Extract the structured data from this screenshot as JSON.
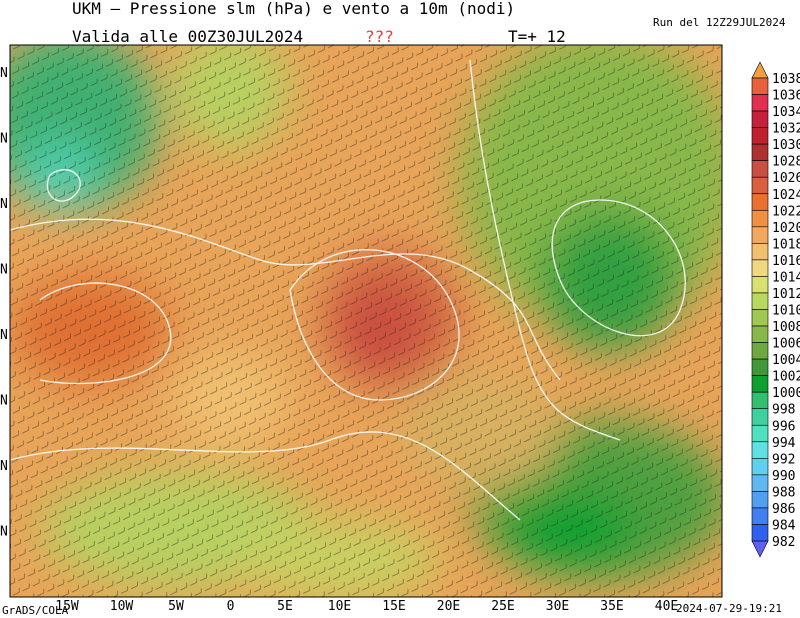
{
  "header": {
    "title": "UKM – Pressione slm (hPa) e vento a 10m (nodi)",
    "valid": "Valida alle 00Z30JUL2024",
    "flag": "???",
    "step": "T=+ 12",
    "run": "Run del 12Z29JUL2024"
  },
  "colorbar": {
    "levels": [
      1038,
      1036,
      1034,
      1032,
      1030,
      1028,
      1026,
      1024,
      1022,
      1020,
      1018,
      1016,
      1014,
      1012,
      1010,
      1008,
      1006,
      1004,
      1002,
      1000,
      998,
      996,
      994,
      992,
      990,
      988,
      986,
      984,
      982
    ],
    "colors": [
      "#e8603c",
      "#e03050",
      "#c8203c",
      "#c02030",
      "#b03030",
      "#c85040",
      "#d86040",
      "#e87030",
      "#f09040",
      "#f0a860",
      "#f0c070",
      "#f0d880",
      "#d8e070",
      "#b8d860",
      "#a0c850",
      "#88b848",
      "#70a840",
      "#409838",
      "#10a030",
      "#30c070",
      "#40d0a0",
      "#50e0c0",
      "#60e0e0",
      "#60d0f0",
      "#60b8f0",
      "#50a0f0",
      "#4080f0",
      "#3060f0"
    ]
  },
  "x_labels": [
    "15W",
    "10W",
    "5W",
    "0",
    "5E",
    "10E",
    "15E",
    "20E",
    "25E",
    "30E",
    "35E",
    "40E"
  ],
  "y_labels": [
    "N",
    "N",
    "N",
    "N",
    "N",
    "N",
    "N",
    "N"
  ],
  "footer": {
    "left": "GrADS/COLA",
    "right": "2024-07-29-19:21"
  }
}
